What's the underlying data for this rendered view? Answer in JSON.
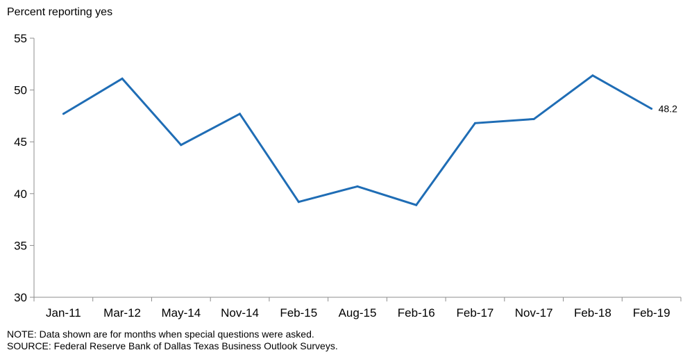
{
  "chart_data": {
    "type": "line",
    "title": "",
    "ylabel": "Percent reporting yes",
    "xlabel": "",
    "categories": [
      "Jan-11",
      "Mar-12",
      "May-14",
      "Nov-14",
      "Feb-15",
      "Aug-15",
      "Feb-16",
      "Feb-17",
      "Nov-17",
      "Feb-18",
      "Feb-19"
    ],
    "series": [
      {
        "values": [
          47.7,
          51.1,
          44.7,
          47.7,
          39.2,
          40.7,
          38.9,
          46.8,
          47.2,
          51.4,
          48.2
        ],
        "color": "#1f6db5"
      }
    ],
    "ylim": [
      30,
      55
    ],
    "yticks": [
      30,
      35,
      40,
      45,
      50,
      55
    ],
    "grid": false,
    "annotations": [
      {
        "text": "48.2",
        "category": "Feb-19"
      }
    ]
  },
  "notes": {
    "note": "NOTE: Data shown are for months when special questions were asked.",
    "source": "SOURCE: Federal Reserve Bank of Dallas Texas Business Outlook Surveys."
  }
}
